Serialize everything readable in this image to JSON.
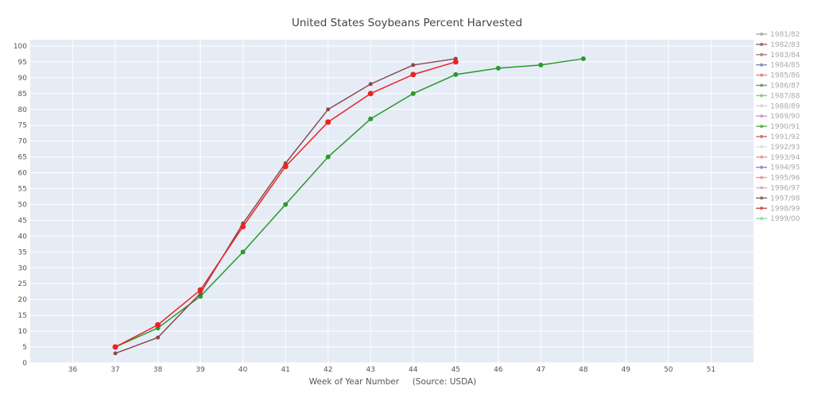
{
  "chart_data": {
    "type": "line",
    "title": "United States Soybeans Percent Harvested",
    "xlabel": "Week of Year Number     (Source: USDA)",
    "ylabel": "",
    "xlim": [
      35,
      52
    ],
    "ylim": [
      0,
      102
    ],
    "xticks": [
      36,
      37,
      38,
      39,
      40,
      41,
      42,
      43,
      44,
      45,
      46,
      47,
      48,
      49,
      50,
      51
    ],
    "yticks": [
      0,
      5,
      10,
      15,
      20,
      25,
      30,
      35,
      40,
      45,
      50,
      55,
      60,
      65,
      70,
      75,
      80,
      85,
      90,
      95,
      100
    ],
    "grid": true,
    "legend_position": "right",
    "legend": [
      {
        "name": "1981/82",
        "color": "#b0b0b0"
      },
      {
        "name": "1982/83",
        "color": "#9e6b6b"
      },
      {
        "name": "1983/84",
        "color": "#a88"
      },
      {
        "name": "1984/85",
        "color": "#8a8fb8"
      },
      {
        "name": "1985/86",
        "color": "#e08888"
      },
      {
        "name": "1986/87",
        "color": "#7a9a7a"
      },
      {
        "name": "1987/88",
        "color": "#7fd67f"
      },
      {
        "name": "1988/89",
        "color": "#d8d8d8"
      },
      {
        "name": "1989/90",
        "color": "#c8a0c8"
      },
      {
        "name": "1990/91",
        "color": "#5cb85c"
      },
      {
        "name": "1991/92",
        "color": "#c87878"
      },
      {
        "name": "1992/93",
        "color": "#e0e0e0"
      },
      {
        "name": "1993/94",
        "color": "#e8a0a0"
      },
      {
        "name": "1994/95",
        "color": "#9090c8"
      },
      {
        "name": "1995/96",
        "color": "#e8a0a0"
      },
      {
        "name": "1996/97",
        "color": "#d0b0d0"
      },
      {
        "name": "1997/98",
        "color": "#8a6a6a"
      },
      {
        "name": "1998/99",
        "color": "#d05858"
      },
      {
        "name": "1999/00",
        "color": "#90e0a0"
      }
    ],
    "series": [
      {
        "color": "#2a9a2a",
        "marker": 3,
        "x": [
          37,
          38,
          39,
          40,
          41,
          42,
          43,
          44,
          45,
          46,
          47,
          48
        ],
        "y": [
          5,
          11,
          21,
          35,
          50,
          65,
          77,
          85,
          91,
          93,
          94,
          96
        ]
      },
      {
        "color": "#8b4a4a",
        "marker": 2.5,
        "x": [
          37,
          38,
          39,
          40,
          41,
          42,
          43,
          44,
          45
        ],
        "y": [
          3,
          8,
          22,
          44,
          63,
          80,
          88,
          94,
          96
        ]
      },
      {
        "color": "#ee2222",
        "marker": 3.5,
        "x": [
          37,
          38,
          39,
          40,
          41,
          42,
          43,
          44,
          45
        ],
        "y": [
          5,
          12,
          23,
          43,
          62,
          76,
          85,
          91,
          95
        ]
      }
    ]
  }
}
